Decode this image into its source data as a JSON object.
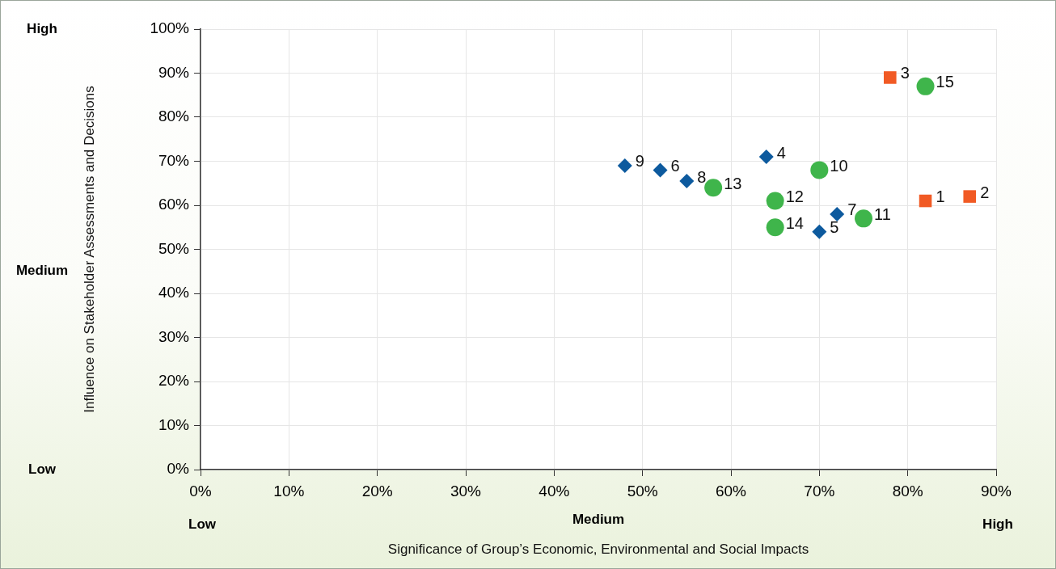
{
  "chart_data": {
    "type": "scatter",
    "xlabel": "Significance of Group’s Economic, Environmental and Social Impacts",
    "ylabel": "Influence on Stakeholder Assessments and Decisions",
    "annotations": [
      "High",
      "Medium",
      "Low",
      "Low",
      "Medium",
      "High",
      {
        "text": "9",
        "x": 48,
        "y": 69
      },
      {
        "text": "6",
        "x": 52,
        "y": 68
      },
      {
        "text": "8",
        "x": 55,
        "y": 65.5
      },
      {
        "text": "4",
        "x": 64,
        "y": 71
      },
      {
        "text": "7",
        "x": 72,
        "y": 58
      },
      {
        "text": "5",
        "x": 70,
        "y": 54
      },
      {
        "text": "13",
        "x": 58,
        "y": 64
      },
      {
        "text": "12",
        "x": 65,
        "y": 61
      },
      {
        "text": "14",
        "x": 65,
        "y": 55
      },
      {
        "text": "10",
        "x": 70,
        "y": 68
      },
      {
        "text": "11",
        "x": 75,
        "y": 57
      },
      {
        "text": "15",
        "x": 82,
        "y": 87
      },
      {
        "text": "3",
        "x": 78,
        "y": 89
      },
      {
        "text": "1",
        "x": 82,
        "y": 61
      },
      {
        "text": "2",
        "x": 87,
        "y": 62
      }
    ],
    "xlim": [
      0,
      90
    ],
    "xticks": [
      {
        "value": 0,
        "label": "0%"
      },
      {
        "value": 10,
        "label": "10%"
      },
      {
        "value": 20,
        "label": "20%"
      },
      {
        "value": 30,
        "label": "30%"
      },
      {
        "value": 40,
        "label": "40%"
      },
      {
        "value": 50,
        "label": "50%"
      },
      {
        "value": 60,
        "label": "60%"
      },
      {
        "value": 70,
        "label": "70%"
      },
      {
        "value": 80,
        "label": "80%"
      },
      {
        "value": 90,
        "label": "90%"
      }
    ],
    "ylim": [
      0,
      100
    ],
    "yticks": [
      {
        "value": 0,
        "label": "0%"
      },
      {
        "value": 10,
        "label": "10%"
      },
      {
        "value": 20,
        "label": "20%"
      },
      {
        "value": 30,
        "label": "30%"
      },
      {
        "value": 40,
        "label": "40%"
      },
      {
        "value": 50,
        "label": "50%"
      },
      {
        "value": 60,
        "label": "60%"
      },
      {
        "value": 70,
        "label": "70%"
      },
      {
        "value": 80,
        "label": "80%"
      },
      {
        "value": 90,
        "label": "90%"
      },
      {
        "value": 100,
        "label": "100%"
      }
    ],
    "grid": true,
    "legend": false,
    "series": [
      {
        "color": "#0d5a9e",
        "marker": "diamond",
        "x": [
          48,
          52,
          55,
          64,
          72,
          70
        ],
        "values": [
          69,
          68,
          65.5,
          71,
          58,
          54
        ]
      },
      {
        "color": "#3fb54b",
        "marker": "circle",
        "x": [
          58,
          65,
          65,
          70,
          75,
          82
        ],
        "values": [
          64,
          61,
          55,
          68,
          57,
          87
        ]
      },
      {
        "color": "#f15a24",
        "marker": "square",
        "x": [
          78,
          82,
          87
        ],
        "values": [
          89,
          61,
          62
        ]
      }
    ]
  }
}
